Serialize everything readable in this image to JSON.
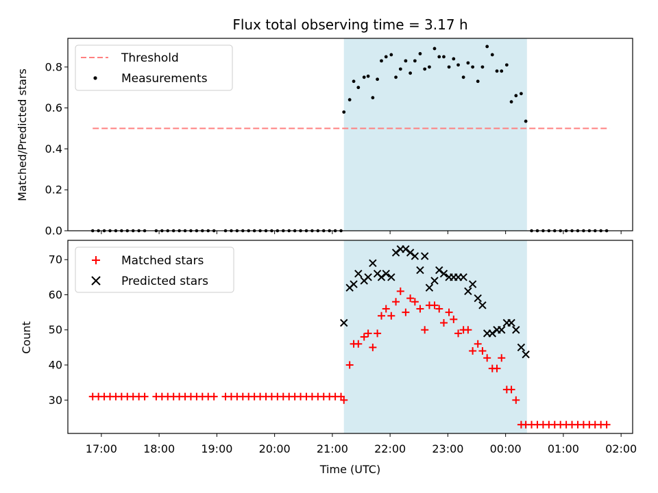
{
  "chart_data": [
    {
      "type": "scatter",
      "title": "Flux total observing time = 3.17 h",
      "xlabel": "",
      "ylabel": "Matched/Predicted stars",
      "xlim": [
        16.42,
        26.2
      ],
      "ylim": [
        0.0,
        0.94
      ],
      "yticks": [
        0.0,
        0.2,
        0.4,
        0.6,
        0.8
      ],
      "ytick_labels": [
        "0.0",
        "0.2",
        "0.4",
        "0.6",
        "0.8"
      ],
      "legend_position": "top-left",
      "shaded_region": {
        "x_start": 21.2,
        "x_end": 24.37,
        "color": "#add8e6"
      },
      "threshold": {
        "name": "Threshold",
        "y": 0.5,
        "x_start": 16.85,
        "x_end": 25.8,
        "color": "#ff7f7f"
      },
      "series": [
        {
          "name": "Measurements",
          "color": "#000000",
          "x_sleep": [
            16.85,
            16.95,
            17.05,
            17.15,
            17.25,
            17.35,
            17.45,
            17.55,
            17.65,
            17.75,
            17.95,
            18.05,
            18.15,
            18.25,
            18.35,
            18.45,
            18.55,
            18.65,
            18.75,
            18.85,
            18.95,
            19.15,
            19.25,
            19.35,
            19.45,
            19.55,
            19.65,
            19.75,
            19.85,
            19.95,
            20.05,
            20.15,
            20.25,
            20.35,
            20.45,
            20.55,
            20.65,
            20.75,
            20.85,
            20.95,
            21.05,
            21.15
          ],
          "y_sleep_value": 0.0,
          "x_active": [
            21.2,
            21.3,
            21.37,
            21.45,
            21.55,
            21.62,
            21.7,
            21.78,
            21.85,
            21.93,
            22.02,
            22.1,
            22.18,
            22.27,
            22.35,
            22.43,
            22.52,
            22.6,
            22.68,
            22.77,
            22.85,
            22.93,
            23.02,
            23.1,
            23.18,
            23.27,
            23.35,
            23.43,
            23.52,
            23.6,
            23.68,
            23.77,
            23.85,
            23.93,
            24.02,
            24.1,
            24.18,
            24.27,
            24.35
          ],
          "y_active": [
            0.58,
            0.64,
            0.73,
            0.7,
            0.75,
            0.755,
            0.65,
            0.74,
            0.83,
            0.85,
            0.86,
            0.75,
            0.79,
            0.83,
            0.77,
            0.83,
            0.865,
            0.79,
            0.8,
            0.89,
            0.85,
            0.85,
            0.8,
            0.84,
            0.81,
            0.75,
            0.82,
            0.8,
            0.73,
            0.8,
            0.9,
            0.86,
            0.78,
            0.78,
            0.81,
            0.63,
            0.66,
            0.67,
            0.535
          ],
          "x_after": [
            24.45,
            24.55,
            24.65,
            24.75,
            24.85,
            24.95,
            25.05,
            25.15,
            25.25,
            25.35,
            25.45,
            25.55,
            25.65,
            25.75
          ],
          "y_after_value": 0.0
        }
      ]
    },
    {
      "type": "scatter",
      "title": "",
      "xlabel": "Time (UTC)",
      "ylabel": "Count",
      "xlim": [
        16.42,
        26.2
      ],
      "ylim": [
        20.5,
        75.5
      ],
      "yticks": [
        30,
        40,
        50,
        60,
        70
      ],
      "ytick_labels": [
        "30",
        "40",
        "50",
        "60",
        "70"
      ],
      "xticks": [
        17,
        18,
        19,
        20,
        21,
        22,
        23,
        24,
        25,
        26
      ],
      "xtick_labels": [
        "17:00",
        "18:00",
        "19:00",
        "20:00",
        "21:00",
        "22:00",
        "23:00",
        "00:00",
        "01:00",
        "02:00"
      ],
      "legend_position": "top-left",
      "shaded_region": {
        "x_start": 21.2,
        "x_end": 24.37,
        "color": "#add8e6"
      },
      "series": [
        {
          "name": "Matched stars",
          "marker": "plus",
          "color": "#ff0000",
          "x": [
            16.85,
            16.95,
            17.05,
            17.15,
            17.25,
            17.35,
            17.45,
            17.55,
            17.65,
            17.75,
            17.95,
            18.05,
            18.15,
            18.25,
            18.35,
            18.45,
            18.55,
            18.65,
            18.75,
            18.85,
            18.95,
            19.15,
            19.25,
            19.35,
            19.45,
            19.55,
            19.65,
            19.75,
            19.85,
            19.95,
            20.05,
            20.15,
            20.25,
            20.35,
            20.45,
            20.55,
            20.65,
            20.75,
            20.85,
            20.95,
            21.05,
            21.15,
            21.2,
            21.3,
            21.37,
            21.45,
            21.55,
            21.62,
            21.7,
            21.78,
            21.85,
            21.93,
            22.02,
            22.1,
            22.18,
            22.27,
            22.35,
            22.43,
            22.52,
            22.6,
            22.68,
            22.77,
            22.85,
            22.93,
            23.02,
            23.1,
            23.18,
            23.27,
            23.35,
            23.43,
            23.52,
            23.6,
            23.68,
            23.77,
            23.85,
            23.93,
            24.02,
            24.1,
            24.18,
            24.27,
            24.35,
            24.45,
            24.55,
            24.65,
            24.75,
            24.85,
            24.95,
            25.05,
            25.15,
            25.25,
            25.35,
            25.45,
            25.55,
            25.65,
            25.75
          ],
          "y": [
            31,
            31,
            31,
            31,
            31,
            31,
            31,
            31,
            31,
            31,
            31,
            31,
            31,
            31,
            31,
            31,
            31,
            31,
            31,
            31,
            31,
            31,
            31,
            31,
            31,
            31,
            31,
            31,
            31,
            31,
            31,
            31,
            31,
            31,
            31,
            31,
            31,
            31,
            31,
            31,
            31,
            31,
            30,
            40,
            46,
            46,
            48,
            49,
            45,
            49,
            54,
            56,
            54,
            58,
            61,
            55,
            59,
            58,
            56,
            50,
            57,
            57,
            56,
            52,
            55,
            53,
            49,
            50,
            50,
            44,
            46,
            44,
            42,
            39,
            39,
            42,
            33,
            33,
            30,
            23,
            23,
            23,
            23,
            23,
            23,
            23,
            23,
            23,
            23,
            23,
            23,
            23,
            23,
            23,
            23
          ]
        },
        {
          "name": "Predicted stars",
          "marker": "x",
          "color": "#000000",
          "x": [
            21.2,
            21.3,
            21.37,
            21.45,
            21.55,
            21.62,
            21.7,
            21.78,
            21.85,
            21.93,
            22.02,
            22.1,
            22.18,
            22.27,
            22.35,
            22.43,
            22.52,
            22.6,
            22.68,
            22.77,
            22.85,
            22.93,
            23.02,
            23.1,
            23.18,
            23.27,
            23.35,
            23.43,
            23.52,
            23.6,
            23.68,
            23.77,
            23.85,
            23.93,
            24.02,
            24.1,
            24.18,
            24.27,
            24.35
          ],
          "y": [
            52,
            62,
            63,
            66,
            64,
            65,
            69,
            66,
            65,
            66,
            65,
            72,
            73,
            73,
            72,
            71,
            67,
            71,
            62,
            64,
            67,
            66,
            65,
            65,
            65,
            65,
            61,
            63,
            59,
            57,
            49,
            49,
            50,
            50,
            52,
            52,
            50,
            45,
            43
          ]
        }
      ]
    }
  ]
}
